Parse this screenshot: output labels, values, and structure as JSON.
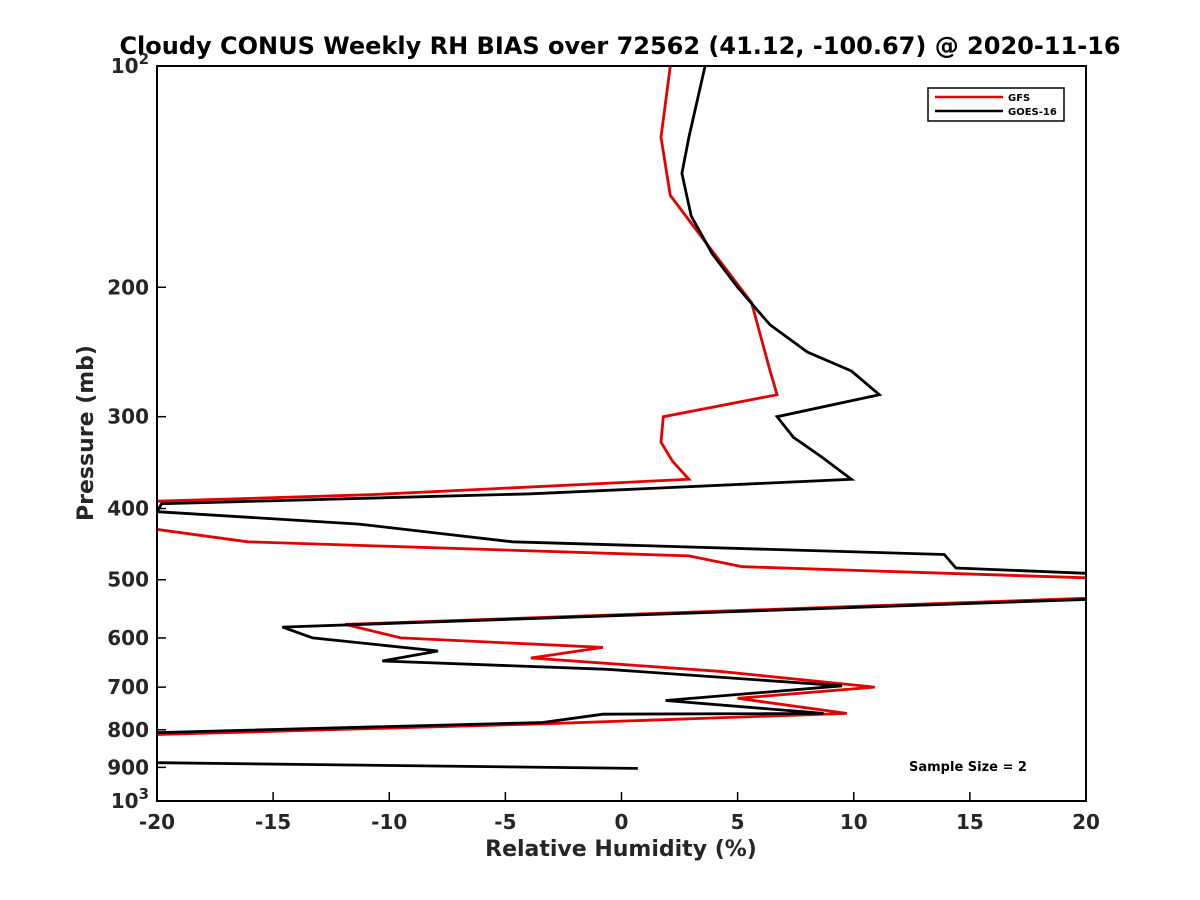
{
  "chart_data": {
    "type": "line",
    "title": "Cloudy CONUS Weekly RH BIAS over 72562 (41.12, -100.67) @ 2020-11-16",
    "xlabel": "Relative Humidity (%)",
    "ylabel": "Pressure (mb)",
    "xlim": [
      -20,
      20
    ],
    "ylim": [
      100,
      1000
    ],
    "y_scale": "log",
    "y_reversed": true,
    "grid": false,
    "legend_position": "top-right",
    "x_ticks": [
      "-20",
      "-15",
      "-10",
      "-5",
      "0",
      "5",
      "10",
      "15",
      "20"
    ],
    "y_ticks": [
      {
        "value": 100,
        "base": "10",
        "exp": "2"
      },
      {
        "value": 200,
        "label": "200"
      },
      {
        "value": 300,
        "label": "300"
      },
      {
        "value": 400,
        "label": "400"
      },
      {
        "value": 500,
        "label": "500"
      },
      {
        "value": 600,
        "label": "600"
      },
      {
        "value": 700,
        "label": "700"
      },
      {
        "value": 800,
        "label": "800"
      },
      {
        "value": 900,
        "label": "900"
      },
      {
        "value": 1000,
        "base": "10",
        "exp": "3"
      }
    ],
    "annotation": "Sample Size = 2",
    "series": [
      {
        "name": "GFS",
        "color": "#e60000",
        "points": [
          [
            2.1,
            100
          ],
          [
            1.7,
            125
          ],
          [
            2.1,
            150
          ],
          [
            3.7,
            175
          ],
          [
            5.6,
            210
          ],
          [
            6.4,
            260
          ],
          [
            6.7,
            280
          ],
          [
            1.8,
            300
          ],
          [
            1.7,
            325
          ],
          [
            2.2,
            345
          ],
          [
            2.9,
            365
          ],
          [
            -10.8,
            383
          ],
          [
            -20,
            391
          ],
          [
            -20.5,
            400
          ],
          [
            -20,
            427
          ],
          [
            -16.1,
            444
          ],
          [
            2.9,
            464
          ],
          [
            5.2,
            480
          ],
          [
            20,
            497
          ],
          [
            20.8,
            505
          ],
          [
            20,
            530
          ],
          [
            -11.9,
            575
          ],
          [
            -9.5,
            600
          ],
          [
            -0.8,
            618
          ],
          [
            -3.9,
            639
          ],
          [
            4.2,
            666
          ],
          [
            10.9,
            700
          ],
          [
            5.0,
            725
          ],
          [
            9.7,
            760
          ],
          [
            -3.2,
            785
          ],
          [
            -20,
            812
          ]
        ]
      },
      {
        "name": "GOES-16",
        "color": "#000000",
        "points": [
          [
            3.6,
            100
          ],
          [
            2.9,
            125
          ],
          [
            2.6,
            140
          ],
          [
            3.0,
            160
          ],
          [
            3.9,
            180
          ],
          [
            5.0,
            200
          ],
          [
            6.4,
            225
          ],
          [
            8.0,
            245
          ],
          [
            9.9,
            260
          ],
          [
            11.1,
            280
          ],
          [
            6.7,
            300
          ],
          [
            7.4,
            320
          ],
          [
            8.6,
            340
          ],
          [
            9.9,
            365
          ],
          [
            -3.9,
            382
          ],
          [
            -19.8,
            394
          ],
          [
            -20,
            404
          ],
          [
            -11.3,
            420
          ],
          [
            -4.7,
            444
          ],
          [
            13.9,
            462
          ],
          [
            14.4,
            482
          ],
          [
            20,
            490
          ],
          [
            20.5,
            500
          ],
          [
            20,
            532
          ],
          [
            -14.6,
            580
          ],
          [
            -13.3,
            600
          ],
          [
            -7.9,
            625
          ],
          [
            -10.3,
            645
          ],
          [
            -0.6,
            662
          ],
          [
            9.5,
            697
          ],
          [
            1.9,
            730
          ],
          [
            8.7,
            760
          ],
          [
            -0.8,
            762
          ],
          [
            -3.4,
            782
          ],
          [
            -20,
            807
          ]
        ]
      },
      {
        "name": "GOES-16",
        "color": "#000000",
        "points": [
          [
            -20,
            887
          ],
          [
            0.7,
            903
          ]
        ]
      }
    ]
  }
}
